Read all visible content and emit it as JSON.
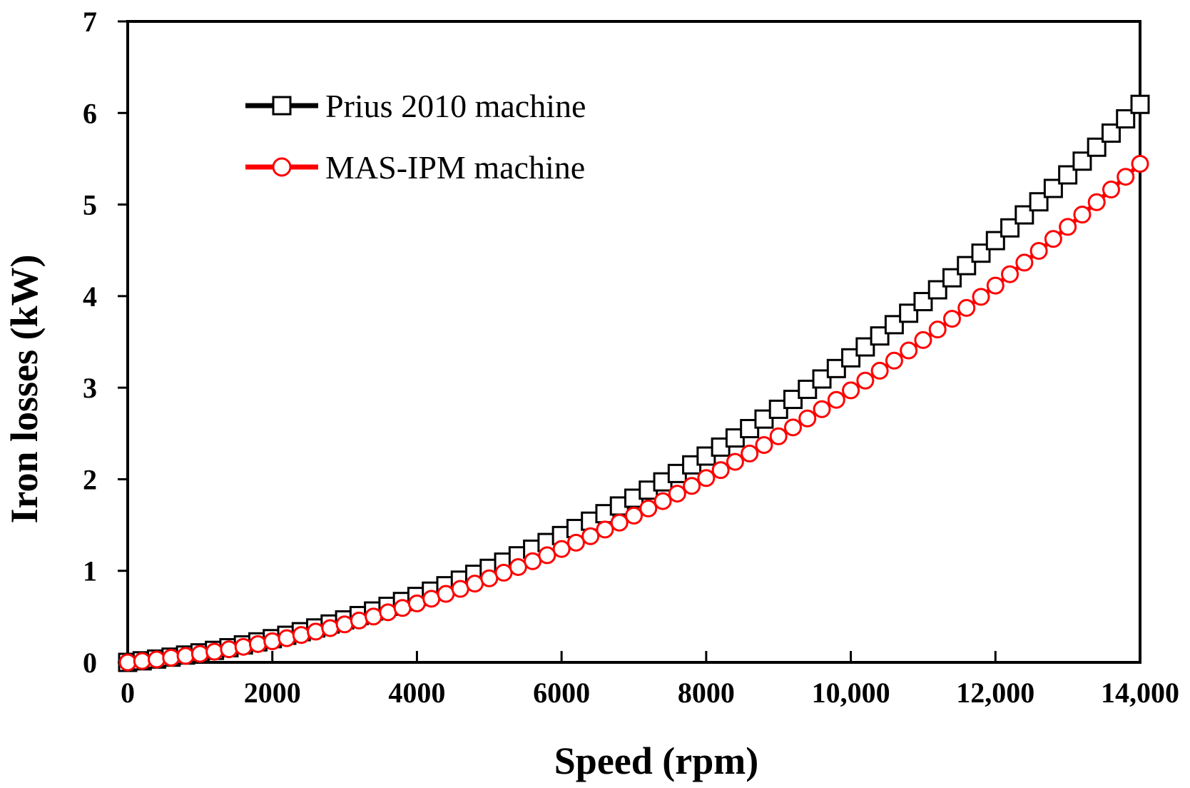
{
  "chart_data": {
    "type": "line",
    "title": "",
    "xlabel": "Speed (rpm)",
    "ylabel": "Iron losses (kW)",
    "xlim": [
      0,
      14000
    ],
    "ylim": [
      0,
      7
    ],
    "x_ticks": [
      0,
      2000,
      4000,
      6000,
      8000,
      10000,
      12000,
      14000
    ],
    "x_tick_labels": [
      "0",
      "2000",
      "4000",
      "6000",
      "8000",
      "10,000",
      "12,000",
      "14,000"
    ],
    "y_ticks": [
      0,
      1,
      2,
      3,
      4,
      5,
      6,
      7
    ],
    "y_tick_labels": [
      "0",
      "1",
      "2",
      "3",
      "4",
      "5",
      "6",
      "7"
    ],
    "grid": false,
    "legend_position": "top-left",
    "x": [
      0,
      200,
      400,
      600,
      800,
      1000,
      1200,
      1400,
      1600,
      1800,
      2000,
      2200,
      2400,
      2600,
      2800,
      3000,
      3200,
      3400,
      3600,
      3800,
      4000,
      4200,
      4400,
      4600,
      4800,
      5000,
      5200,
      5400,
      5600,
      5800,
      6000,
      6200,
      6400,
      6600,
      6800,
      7000,
      7200,
      7400,
      7600,
      7800,
      8000,
      8200,
      8400,
      8600,
      8800,
      9000,
      9200,
      9400,
      9600,
      9800,
      10000,
      10200,
      10400,
      10600,
      10800,
      11000,
      11200,
      11400,
      11600,
      11800,
      12000,
      12200,
      12400,
      12600,
      12800,
      13000,
      13200,
      13400,
      13600,
      13800,
      14000
    ],
    "series": [
      {
        "name": "Prius 2010 machine",
        "color": "#000000",
        "marker": "square",
        "values": [
          0.0,
          0.017,
          0.036,
          0.057,
          0.08,
          0.104,
          0.131,
          0.16,
          0.191,
          0.224,
          0.259,
          0.296,
          0.335,
          0.376,
          0.419,
          0.464,
          0.511,
          0.561,
          0.612,
          0.665,
          0.72,
          0.778,
          0.837,
          0.898,
          0.962,
          1.027,
          1.095,
          1.164,
          1.236,
          1.309,
          1.385,
          1.462,
          1.542,
          1.624,
          1.708,
          1.793,
          1.881,
          1.971,
          2.063,
          2.157,
          2.253,
          2.351,
          2.451,
          2.553,
          2.657,
          2.764,
          2.872,
          2.982,
          3.095,
          3.209,
          3.326,
          3.445,
          3.565,
          3.688,
          3.813,
          3.94,
          4.069,
          4.2,
          4.333,
          4.469,
          4.606,
          4.745,
          4.887,
          5.03,
          5.176,
          5.324,
          5.474,
          5.626,
          5.78,
          5.936,
          6.094
        ]
      },
      {
        "name": "MAS-IPM machine",
        "color": "#ff0000",
        "marker": "circle",
        "values": [
          0.0,
          0.015,
          0.032,
          0.051,
          0.071,
          0.093,
          0.117,
          0.143,
          0.17,
          0.2,
          0.231,
          0.264,
          0.299,
          0.336,
          0.374,
          0.415,
          0.457,
          0.501,
          0.547,
          0.594,
          0.644,
          0.695,
          0.748,
          0.803,
          0.86,
          0.918,
          0.979,
          1.041,
          1.105,
          1.17,
          1.238,
          1.307,
          1.378,
          1.451,
          1.526,
          1.603,
          1.681,
          1.761,
          1.843,
          1.927,
          2.013,
          2.1,
          2.19,
          2.281,
          2.374,
          2.469,
          2.566,
          2.664,
          2.765,
          2.867,
          2.971,
          3.077,
          3.185,
          3.295,
          3.406,
          3.52,
          3.635,
          3.752,
          3.871,
          3.992,
          4.115,
          4.239,
          4.366,
          4.494,
          4.624,
          4.756,
          4.89,
          5.026,
          5.164,
          5.303,
          5.445
        ]
      }
    ]
  }
}
